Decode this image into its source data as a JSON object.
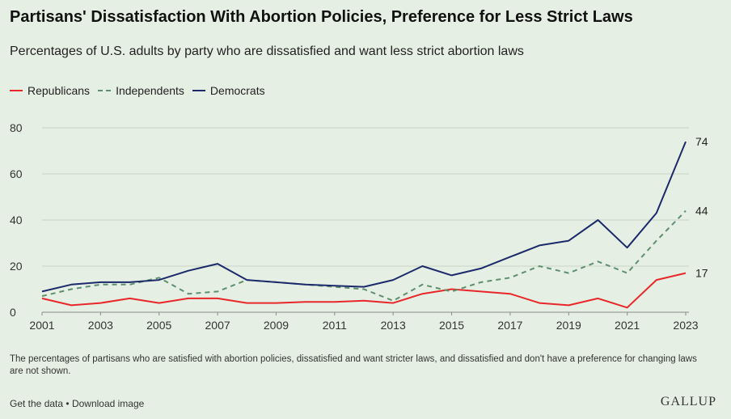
{
  "header": {
    "title": "Partisans' Dissatisfaction With Abortion Policies, Preference for Less Strict Laws",
    "subtitle": "Percentages of U.S. adults by party who are dissatisfied and want less strict abortion laws"
  },
  "legend": {
    "republicans": "Republicans",
    "independents": "Independents",
    "democrats": "Democrats"
  },
  "colors": {
    "republicans": "#e8272a",
    "independents": "#5e8f6e",
    "democrats": "#1b2a6b",
    "background": "#e6efe3"
  },
  "chart_data": {
    "type": "line",
    "title": "Partisans' Dissatisfaction With Abortion Policies, Preference for Less Strict Laws",
    "xlabel": "",
    "ylabel": "",
    "xlim": [
      2001,
      2023
    ],
    "ylim": [
      0,
      80
    ],
    "yticks": [
      0,
      20,
      40,
      60,
      80
    ],
    "xticks": [
      2001,
      2003,
      2005,
      2007,
      2009,
      2011,
      2013,
      2015,
      2017,
      2019,
      2021,
      2023
    ],
    "x": [
      2001,
      2002,
      2003,
      2004,
      2005,
      2006,
      2007,
      2008,
      2009,
      2010,
      2011,
      2012,
      2013,
      2014,
      2015,
      2016,
      2017,
      2018,
      2019,
      2020,
      2021,
      2022,
      2023
    ],
    "series": [
      {
        "name": "Republicans",
        "style": "solid",
        "values": [
          6,
          3,
          4,
          6,
          4,
          6,
          6,
          4,
          4,
          4.5,
          4.5,
          5,
          4,
          8,
          10,
          9,
          8,
          4,
          3,
          6,
          2,
          14,
          17
        ],
        "end_label": "17"
      },
      {
        "name": "Independents",
        "style": "dashed",
        "values": [
          7,
          10,
          12,
          12,
          15,
          8,
          9,
          14,
          13,
          12,
          11,
          10,
          5,
          12,
          9,
          13,
          15,
          20,
          17,
          22,
          17,
          31,
          44
        ],
        "end_label": "44"
      },
      {
        "name": "Democrats",
        "style": "solid",
        "values": [
          9,
          12,
          13,
          13,
          14,
          18,
          21,
          14,
          13,
          12,
          11.5,
          11,
          14,
          20,
          16,
          19,
          24,
          29,
          31,
          40,
          28,
          43,
          74
        ],
        "end_label": "74"
      }
    ],
    "grid": "horizontal"
  },
  "footnote": "The percentages of partisans who are satisfied with abortion policies, dissatisfied and want stricter laws, and dissatisfied and don't have a preference for changing laws are not shown.",
  "footer": {
    "get_data": "Get the data",
    "separator": "•",
    "download": "Download image",
    "brand": "GALLUP"
  }
}
